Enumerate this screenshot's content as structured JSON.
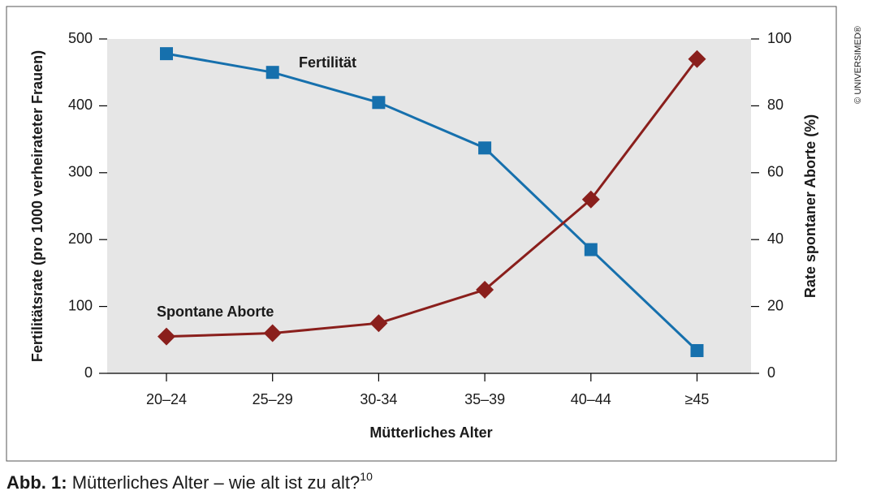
{
  "chart_data": {
    "type": "line",
    "x_label": "Mütterliches Alter",
    "y_label": "Fertilitätsrate (pro 1000 verheirateter Frauen)",
    "y2_label": "Rate spontaner Aborte (%)",
    "categories": [
      "20–24",
      "25–29",
      "30-34",
      "35–39",
      "40–44",
      "≥45"
    ],
    "series": [
      {
        "name": "Fertilität",
        "color": "#1670ad",
        "marker": "square",
        "values": [
          478,
          450,
          405,
          337,
          185,
          34
        ]
      },
      {
        "name": "Spontane Aborte",
        "color": "#8a1f1c",
        "marker": "diamond",
        "axis": "y2",
        "values": [
          11,
          12,
          15,
          25,
          52,
          94
        ]
      }
    ],
    "ylim": [
      0,
      500
    ],
    "yticks": [
      0,
      100,
      200,
      300,
      400,
      500
    ],
    "y2lim": [
      0,
      100
    ],
    "y2ticks": [
      0,
      20,
      40,
      60,
      80,
      100
    ]
  },
  "caption": {
    "label": "Abb. 1:",
    "text": "Mütterliches Alter – wie alt ist zu alt?",
    "ref": "10"
  },
  "copyright": "© UNIVERSIMED®"
}
